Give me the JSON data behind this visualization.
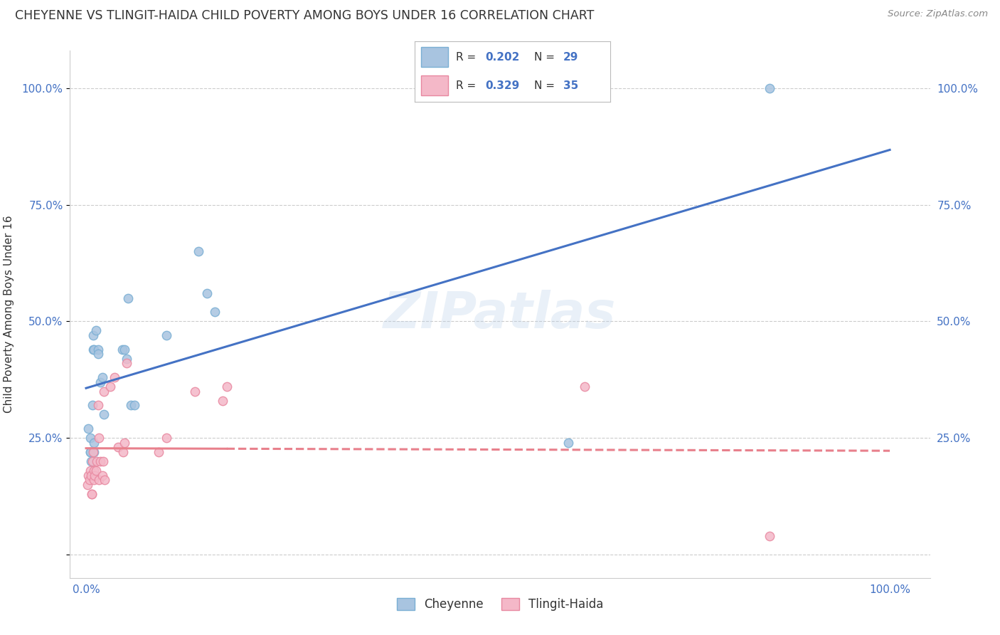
{
  "title": "CHEYENNE VS TLINGIT-HAIDA CHILD POVERTY AMONG BOYS UNDER 16 CORRELATION CHART",
  "source": "Source: ZipAtlas.com",
  "ylabel": "Child Poverty Among Boys Under 16",
  "watermark": "ZIPatlas",
  "cheyenne_color": "#a8c4e0",
  "cheyenne_edge": "#7aafd4",
  "tlingit_color": "#f4b8c8",
  "tlingit_edge": "#e888a0",
  "trendline_cheyenne": "#4472c4",
  "trendline_tlingit": "#e8808c",
  "legend_R_cheyenne": "0.202",
  "legend_N_cheyenne": "29",
  "legend_R_tlingit": "0.329",
  "legend_N_tlingit": "35",
  "cheyenne_x": [
    0.3,
    0.5,
    0.5,
    0.5,
    0.6,
    0.8,
    0.9,
    0.9,
    1.0,
    1.0,
    1.0,
    1.2,
    1.5,
    1.5,
    1.8,
    2.0,
    2.2,
    4.5,
    4.8,
    5.0,
    5.2,
    5.6,
    6.0,
    10.0,
    14.0,
    15.0,
    16.0,
    60.0,
    85.0
  ],
  "cheyenne_y": [
    27.0,
    25.0,
    22.0,
    22.0,
    20.0,
    32.0,
    44.0,
    47.0,
    22.0,
    24.0,
    44.0,
    48.0,
    44.0,
    43.0,
    37.0,
    38.0,
    30.0,
    44.0,
    44.0,
    42.0,
    55.0,
    32.0,
    32.0,
    47.0,
    65.0,
    56.0,
    52.0,
    24.0,
    100.0
  ],
  "tlingit_x": [
    0.2,
    0.3,
    0.4,
    0.5,
    0.6,
    0.7,
    0.7,
    0.8,
    0.9,
    1.0,
    1.0,
    1.1,
    1.2,
    1.3,
    1.5,
    1.6,
    1.6,
    1.8,
    2.0,
    2.1,
    2.2,
    2.3,
    3.0,
    3.5,
    4.0,
    4.6,
    4.8,
    5.0,
    9.0,
    10.0,
    13.5,
    17.0,
    17.5,
    62.0,
    85.0
  ],
  "tlingit_y": [
    15.0,
    17.0,
    16.0,
    18.0,
    17.0,
    13.0,
    13.0,
    20.0,
    22.0,
    18.0,
    16.0,
    17.0,
    18.0,
    20.0,
    32.0,
    25.0,
    16.0,
    20.0,
    17.0,
    20.0,
    35.0,
    16.0,
    36.0,
    38.0,
    23.0,
    22.0,
    24.0,
    41.0,
    22.0,
    25.0,
    35.0,
    33.0,
    36.0,
    36.0,
    4.0
  ],
  "yticks": [
    0.0,
    25.0,
    50.0,
    75.0,
    100.0
  ],
  "ytick_labels": [
    "",
    "25.0%",
    "50.0%",
    "75.0%",
    "100.0%"
  ],
  "ylim": [
    -5.0,
    108.0
  ],
  "xlim": [
    -2.0,
    105.0
  ],
  "background_color": "#ffffff",
  "grid_color": "#cccccc",
  "axis_color": "#cccccc",
  "title_color": "#333333",
  "source_color": "#888888",
  "tick_color": "#4472c4",
  "marker_size": 80
}
